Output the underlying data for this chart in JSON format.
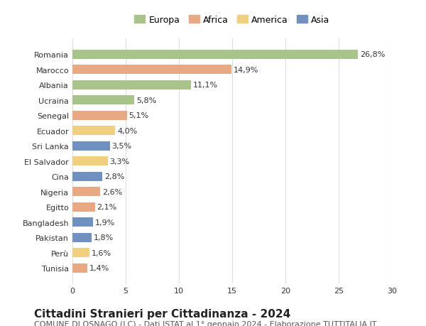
{
  "countries": [
    "Romania",
    "Marocco",
    "Albania",
    "Ucraina",
    "Senegal",
    "Ecuador",
    "Sri Lanka",
    "El Salvador",
    "Cina",
    "Nigeria",
    "Egitto",
    "Bangladesh",
    "Pakistan",
    "Perù",
    "Tunisia"
  ],
  "values": [
    26.8,
    14.9,
    11.1,
    5.8,
    5.1,
    4.0,
    3.5,
    3.3,
    2.8,
    2.6,
    2.1,
    1.9,
    1.8,
    1.6,
    1.4
  ],
  "labels": [
    "26,8%",
    "14,9%",
    "11,1%",
    "5,8%",
    "5,1%",
    "4,0%",
    "3,5%",
    "3,3%",
    "2,8%",
    "2,6%",
    "2,1%",
    "1,9%",
    "1,8%",
    "1,6%",
    "1,4%"
  ],
  "continents": [
    "Europa",
    "Africa",
    "Europa",
    "Europa",
    "Africa",
    "America",
    "Asia",
    "America",
    "Asia",
    "Africa",
    "Africa",
    "Asia",
    "Asia",
    "America",
    "Africa"
  ],
  "colors": {
    "Europa": "#a8c48a",
    "Africa": "#e8a882",
    "America": "#f0d080",
    "Asia": "#7090c0"
  },
  "legend_order": [
    "Europa",
    "Africa",
    "America",
    "Asia"
  ],
  "title": "Cittadini Stranieri per Cittadinanza - 2024",
  "subtitle": "COMUNE DI OSNAGO (LC) - Dati ISTAT al 1° gennaio 2024 - Elaborazione TUTTITALIA.IT",
  "xlim": [
    0,
    30
  ],
  "xticks": [
    0,
    5,
    10,
    15,
    20,
    25,
    30
  ],
  "bg_color": "#ffffff",
  "grid_color": "#dddddd",
  "title_fontsize": 11,
  "subtitle_fontsize": 8,
  "label_fontsize": 8,
  "tick_fontsize": 8
}
